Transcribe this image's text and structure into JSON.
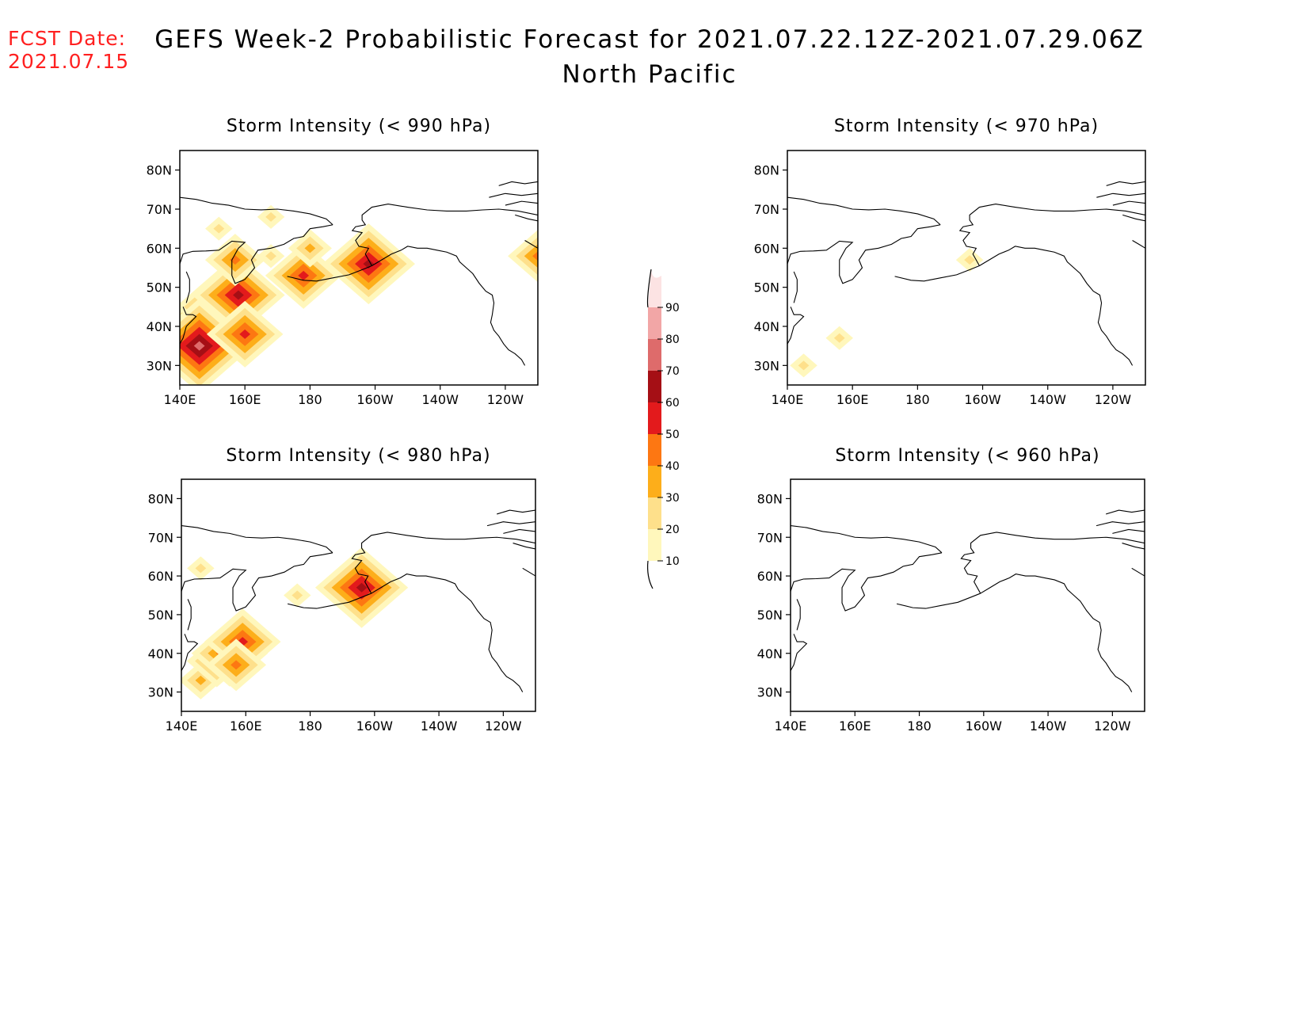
{
  "header": {
    "fcst_label": "FCST Date:",
    "fcst_date": "2021.07.15",
    "title_line1": "GEFS Week-2 Probabilistic Forecast for 2021.07.22.12Z-2021.07.29.06Z",
    "title_line2": "North Pacific"
  },
  "lat_ticks": [
    "80N",
    "70N",
    "60N",
    "50N",
    "40N",
    "30N"
  ],
  "lon_ticks": [
    "140E",
    "160E",
    "180",
    "160W",
    "140W",
    "120W"
  ],
  "colors": {
    "land_line": "#000000",
    "levels": [
      "#fff7bc",
      "#fee08b",
      "#fdae1a",
      "#fd7712",
      "#e31a1c",
      "#a50f15",
      "#de6b6b",
      "#f2a6a6",
      "#fce3e3"
    ]
  },
  "colorbar": {
    "labels": [
      "10",
      "20",
      "30",
      "40",
      "50",
      "60",
      "70",
      "80",
      "90"
    ]
  },
  "panels": [
    {
      "id": "p990",
      "title": "Storm Intensity (< 990 hPa)",
      "blobs": [
        {
          "lon": 150,
          "lat": 40,
          "level": 6
        },
        {
          "lon": 153,
          "lat": 45,
          "level": 5
        },
        {
          "lon": 158,
          "lat": 48,
          "level": 5
        },
        {
          "lon": 146,
          "lat": 35,
          "level": 6
        },
        {
          "lon": 160,
          "lat": 38,
          "level": 4
        },
        {
          "lon": 157,
          "lat": 55,
          "level": 1
        },
        {
          "lon": 152,
          "lat": 65,
          "level": 1
        },
        {
          "lon": 168,
          "lat": 58,
          "level": 1
        },
        {
          "lon": 178,
          "lat": 53,
          "level": 4
        },
        {
          "lon": 180,
          "lat": 60,
          "level": 2
        },
        {
          "lon": 168,
          "lat": 68,
          "level": 1
        },
        {
          "lon": 157,
          "lat": 57,
          "level": 3
        },
        {
          "lon": 198,
          "lat": 56,
          "level": 5
        },
        {
          "lon": 250,
          "lat": 58,
          "level": 3
        }
      ]
    },
    {
      "id": "p970",
      "title": "Storm Intensity (< 970 hPa)",
      "blobs": [
        {
          "lon": 156,
          "lat": 37,
          "level": 1
        },
        {
          "lon": 145,
          "lat": 30,
          "level": 1
        },
        {
          "lon": 196,
          "lat": 57,
          "level": 1
        }
      ]
    },
    {
      "id": "p980",
      "title": "Storm Intensity (< 980 hPa)",
      "blobs": [
        {
          "lon": 146,
          "lat": 33,
          "level": 2
        },
        {
          "lon": 151,
          "lat": 38,
          "level": 3
        },
        {
          "lon": 155,
          "lat": 40,
          "level": 4
        },
        {
          "lon": 159,
          "lat": 43,
          "level": 4
        },
        {
          "lon": 157,
          "lat": 37,
          "level": 3
        },
        {
          "lon": 196,
          "lat": 57,
          "level": 5
        },
        {
          "lon": 146,
          "lat": 62,
          "level": 1
        },
        {
          "lon": 176,
          "lat": 55,
          "level": 1
        }
      ]
    },
    {
      "id": "p960",
      "title": "Storm Intensity (< 960 hPa)",
      "blobs": []
    }
  ]
}
